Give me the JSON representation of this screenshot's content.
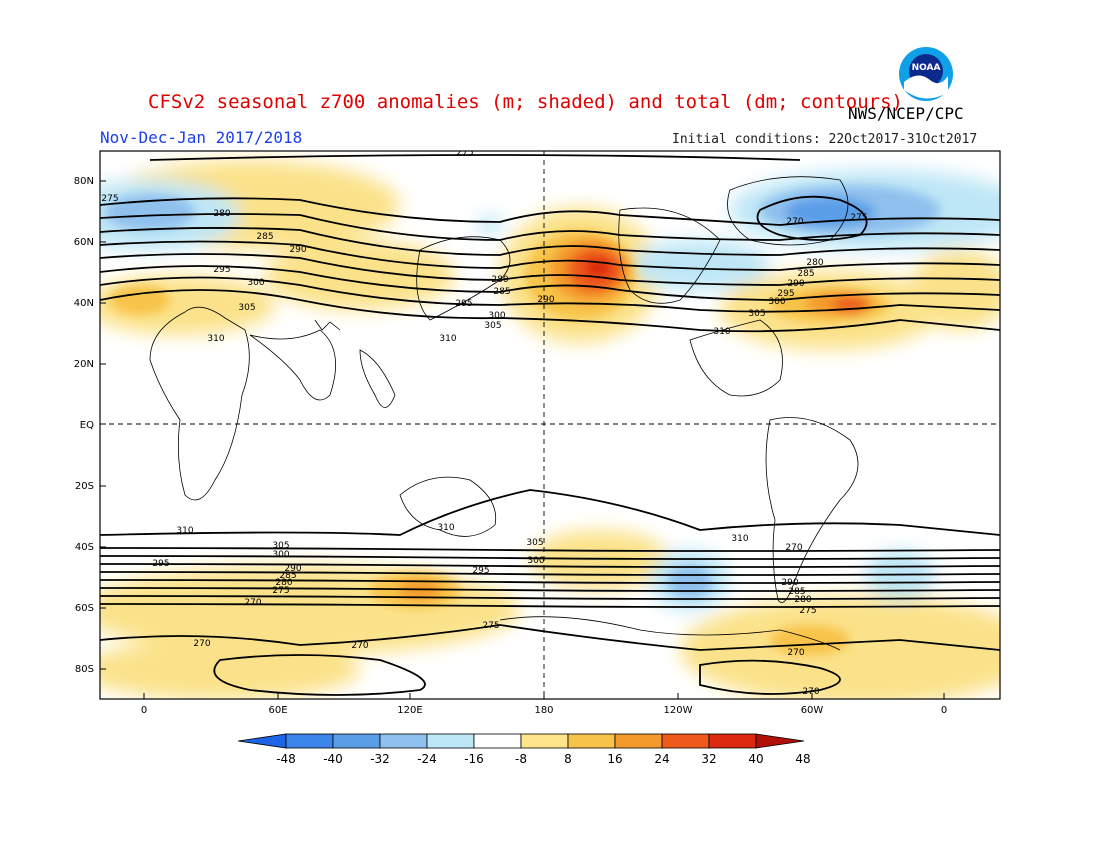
{
  "header": {
    "title": "CFSv2 seasonal z700 anomalies (m; shaded) and total (dm; contours)",
    "agency": "NWS/NCEP/CPC",
    "season": "Nov-Dec-Jan 2017/2018",
    "init_conditions": "Initial conditions: 22Oct2017-31Oct2017",
    "logo_text": "NOAA"
  },
  "map": {
    "projection": "equirectangular",
    "lon_range": [
      -20,
      360
    ],
    "lat_range": [
      -90,
      90
    ],
    "dashed_reference_lines": [
      "EQ",
      "180"
    ],
    "lat_ticks": [
      "80N",
      "60N",
      "40N",
      "20N",
      "EQ",
      "20S",
      "40S",
      "60S",
      "80S"
    ],
    "lon_ticks": [
      "0",
      "60E",
      "120E",
      "180",
      "120W",
      "60W",
      "0"
    ],
    "contour_labels": [
      "275",
      "280",
      "285",
      "290",
      "295",
      "300",
      "305",
      "310",
      "280",
      "285",
      "290",
      "295",
      "300",
      "305",
      "310",
      "275",
      "270",
      "275",
      "280",
      "285",
      "290",
      "295",
      "300",
      "305",
      "310",
      "310",
      "310",
      "310",
      "305",
      "300",
      "295",
      "290",
      "285",
      "280",
      "275",
      "270",
      "305",
      "300",
      "295",
      "290",
      "285",
      "280",
      "275",
      "270",
      "270",
      "275",
      "270",
      "270",
      "270"
    ],
    "anomaly_features": [
      {
        "type": "positive",
        "region": "North Pacific / Aleutians",
        "peak_m": 40
      },
      {
        "type": "positive",
        "region": "North Atlantic",
        "peak_m": 32
      },
      {
        "type": "negative",
        "region": "Greenland / Arctic Canada",
        "peak_m": -32
      },
      {
        "type": "negative",
        "region": "North Atlantic / Arctic (0-30E)",
        "peak_m": -24
      },
      {
        "type": "positive",
        "region": "Europe / Mediterranean",
        "peak_m": 16
      },
      {
        "type": "positive",
        "region": "Southern Ocean south of Australia",
        "peak_m": 32
      },
      {
        "type": "negative",
        "region": "South Pacific 120W",
        "peak_m": -16
      }
    ]
  },
  "colorbar": {
    "labels": [
      "-48",
      "-40",
      "-32",
      "-24",
      "-16",
      "-8",
      "8",
      "16",
      "24",
      "32",
      "40",
      "48"
    ],
    "colors": [
      "#1e64e6",
      "#3a84ea",
      "#5a9ee8",
      "#8fc0ee",
      "#bde6f6",
      "#ffffff",
      "#fce58a",
      "#f8c34a",
      "#f49a2c",
      "#ee5a1c",
      "#dc2a10",
      "#b01008"
    ],
    "units": "m"
  }
}
